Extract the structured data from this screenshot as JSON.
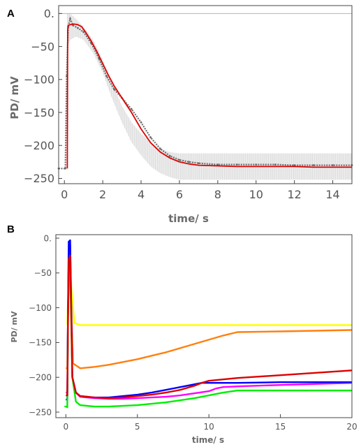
{
  "chart_data": [
    {
      "panel": "A",
      "type": "line",
      "xlabel": "time/ s",
      "ylabel": "PD/ mV",
      "xlim": [
        -0.3,
        15
      ],
      "ylim": [
        -258,
        12
      ],
      "xticks": [
        0,
        2,
        4,
        6,
        8,
        10,
        12,
        14
      ],
      "xtick_labels": [
        "0",
        "2",
        "4",
        "6",
        "8",
        "10",
        "12",
        "14"
      ],
      "yticks": [
        0,
        -50,
        -100,
        -150,
        -200,
        -250
      ],
      "ytick_labels": [
        "0.",
        "−50",
        "−100",
        "−150",
        "−200",
        "−250"
      ],
      "grid": false,
      "colors": {
        "model": "#dd0000",
        "data": "#6e6e6e",
        "band": "#d4d4d4",
        "reference": "#b4b4b4"
      },
      "reference_y": 0,
      "series": [
        {
          "role": "error-band",
          "x": [
            0.15,
            0.3,
            0.6,
            1,
            1.5,
            2,
            2.5,
            3,
            3.5,
            4,
            4.5,
            5,
            5.5,
            6,
            7,
            8,
            10,
            12,
            14,
            15
          ],
          "upper": [
            0,
            0,
            -8,
            -20,
            -40,
            -70,
            -105,
            -140,
            -165,
            -182,
            -195,
            -205,
            -210,
            -212,
            -212,
            -212,
            -212,
            -212,
            -212,
            -212
          ],
          "lower": [
            -50,
            -40,
            -35,
            -40,
            -60,
            -90,
            -130,
            -165,
            -195,
            -215,
            -232,
            -242,
            -248,
            -252,
            -252,
            -252,
            -252,
            -252,
            -252,
            -252
          ]
        },
        {
          "role": "data-mean",
          "x": [
            -0.3,
            0.05,
            0.12,
            0.2,
            0.3,
            0.45,
            0.7,
            1.0,
            1.4,
            1.8,
            2.2,
            2.6,
            3.0,
            3.5,
            4.0,
            4.5,
            5.0,
            5.5,
            6.0,
            6.5,
            7.0,
            8.0,
            9.0,
            10.0,
            11.0,
            12.0,
            13.0,
            14.0,
            15.0
          ],
          "y": [
            -235,
            -235,
            -95,
            -20,
            -8,
            -18,
            -22,
            -28,
            -45,
            -68,
            -95,
            -115,
            -128,
            -145,
            -165,
            -188,
            -205,
            -216,
            -222,
            -225,
            -227,
            -229,
            -229,
            -229,
            -229,
            -230,
            -230,
            -230,
            -230
          ]
        },
        {
          "role": "model",
          "x": [
            0.15,
            0.17,
            0.2,
            0.3,
            0.5,
            0.7,
            0.9,
            1.1,
            1.4,
            1.7,
            2.0,
            2.3,
            2.6,
            3.0,
            3.5,
            4.0,
            4.5,
            5.0,
            5.5,
            6.0,
            6.5,
            7.0,
            8.0,
            9.0,
            10.0,
            11.0,
            12.0,
            13.0,
            14.0,
            15.0
          ],
          "y": [
            -235,
            -25,
            -18,
            -17,
            -16,
            -17,
            -20,
            -28,
            -42,
            -58,
            -76,
            -94,
            -110,
            -128,
            -150,
            -175,
            -196,
            -210,
            -219,
            -225,
            -228,
            -230,
            -231,
            -232,
            -232,
            -232,
            -232,
            -233,
            -233,
            -233
          ]
        }
      ]
    },
    {
      "panel": "B",
      "type": "line",
      "xlabel": "time/ s",
      "ylabel": "PD/ mV",
      "xlim": [
        -0.7,
        20
      ],
      "ylim": [
        -258,
        5
      ],
      "xticks": [
        0,
        5,
        10,
        15,
        20
      ],
      "xtick_labels": [
        "0",
        "5",
        "10",
        "15",
        "20"
      ],
      "yticks": [
        0,
        -50,
        -100,
        -150,
        -200,
        -250
      ],
      "ytick_labels": [
        "0.",
        "−50",
        "−100",
        "−150",
        "−200",
        "−250"
      ],
      "grid": false,
      "series": [
        {
          "color": "#ffff00",
          "x": [
            0.1,
            0.15,
            0.2,
            0.3,
            0.4,
            0.6,
            1,
            2,
            5,
            10,
            15,
            20
          ],
          "y": [
            -125,
            -90,
            -60,
            -40,
            -75,
            -122,
            -125,
            -125,
            -125,
            -125,
            -125,
            -125
          ]
        },
        {
          "color": "#ff7f0e",
          "x": [
            0.0,
            0.1,
            0.15,
            0.2,
            0.3,
            0.5,
            1,
            1.5,
            2,
            3,
            4,
            5,
            6,
            7,
            8,
            9,
            10,
            11,
            12,
            15,
            20
          ],
          "y": [
            -187,
            -187,
            -110,
            -60,
            -40,
            -180,
            -187,
            -186,
            -185,
            -182,
            -178,
            -174,
            -169,
            -164,
            -158,
            -152,
            -146,
            -140,
            -135,
            -134,
            -132
          ]
        },
        {
          "color": "#ff00ff",
          "x": [
            0.0,
            0.1,
            0.15,
            0.2,
            0.3,
            0.45,
            0.7,
            1,
            2,
            3,
            4,
            5,
            6,
            7,
            8,
            9,
            10,
            10.5,
            11,
            12,
            15,
            20
          ],
          "y": [
            -222,
            -222,
            -100,
            -25,
            -10,
            -200,
            -222,
            -228,
            -230,
            -231,
            -231,
            -230,
            -229,
            -228,
            -226,
            -223,
            -220,
            -216,
            -214,
            -213,
            -211,
            -208
          ]
        },
        {
          "color": "#0000ff",
          "x": [
            0.0,
            0.1,
            0.15,
            0.2,
            0.3,
            0.45,
            0.7,
            1,
            2,
            3,
            4,
            5,
            6,
            7,
            8,
            9,
            9.5,
            10,
            12,
            15,
            20
          ],
          "y": [
            -232,
            -232,
            -100,
            -5,
            -3,
            -200,
            -222,
            -227,
            -229,
            -229,
            -227,
            -225,
            -222,
            -218,
            -214,
            -210,
            -208,
            -208,
            -208,
            -207,
            -207
          ]
        },
        {
          "color": "#00ee00",
          "x": [
            -0.1,
            0.0,
            0.1,
            0.15,
            0.2,
            0.3,
            0.45,
            0.7,
            1,
            2,
            3,
            5,
            7,
            9,
            11,
            12,
            15,
            20
          ],
          "y": [
            -242,
            -242,
            -243,
            -110,
            -60,
            -50,
            -200,
            -235,
            -240,
            -242,
            -242,
            -240,
            -236,
            -230,
            -222,
            -219,
            -219,
            -219
          ]
        },
        {
          "color": "#dd0000",
          "x": [
            0.0,
            0.1,
            0.15,
            0.2,
            0.3,
            0.45,
            0.7,
            1,
            2,
            3,
            4,
            5,
            6,
            7,
            8,
            9,
            9.5,
            10,
            11,
            12,
            15,
            20
          ],
          "y": [
            -226,
            -226,
            -120,
            -30,
            -25,
            -200,
            -222,
            -227,
            -229,
            -230,
            -229,
            -227,
            -225,
            -222,
            -218,
            -212,
            -208,
            -205,
            -203,
            -201,
            -197,
            -190
          ]
        }
      ]
    }
  ]
}
